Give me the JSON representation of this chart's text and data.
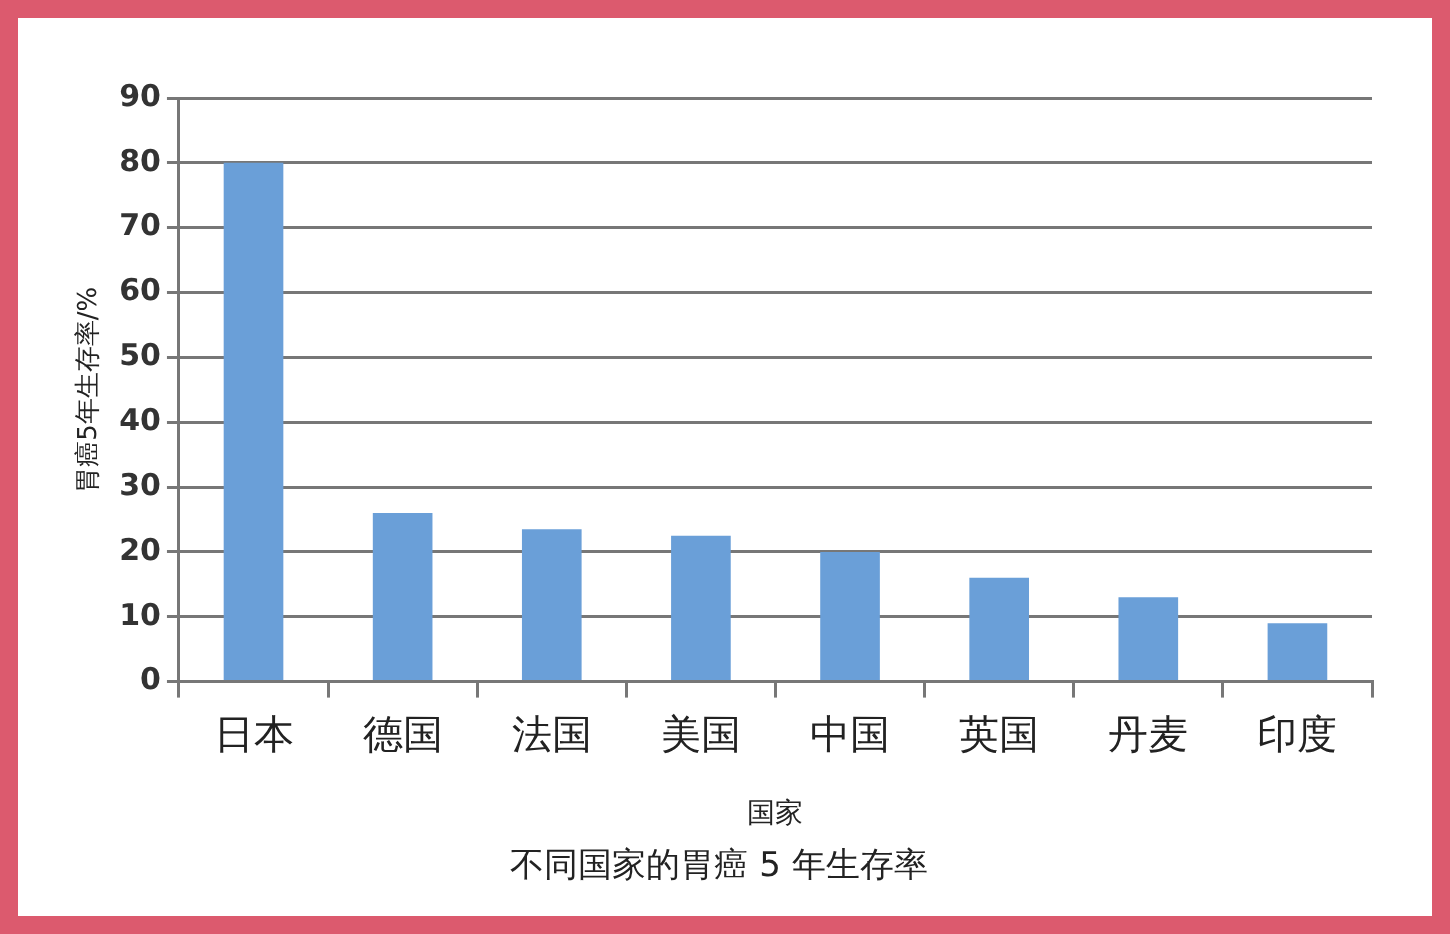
{
  "chart_data": {
    "type": "bar",
    "title": "不同国家的胃癌 5 年生存率",
    "xlabel": "国家",
    "ylabel": "胃癌5年生存率/%",
    "categories": [
      "日本",
      "德国",
      "法国",
      "美国",
      "中国",
      "英国",
      "丹麦",
      "印度"
    ],
    "values": [
      80,
      26,
      23.5,
      22.5,
      20,
      16,
      13,
      9
    ],
    "color": "#6a9fd8",
    "ylim": [
      0,
      90
    ],
    "yticks": [
      0,
      10,
      20,
      30,
      40,
      50,
      60,
      70,
      80,
      90
    ],
    "grid": "y"
  }
}
